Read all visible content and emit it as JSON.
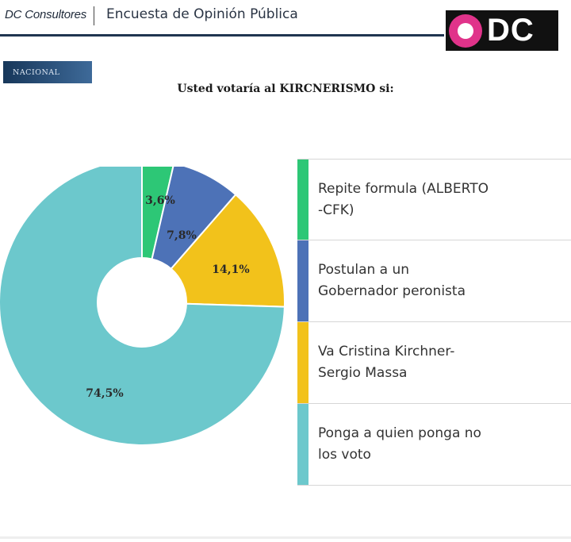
{
  "header": {
    "brand": "DC Consultores",
    "survey_title": "Encuesta de Opinión Pública",
    "logo_text": "DC"
  },
  "section_tag": "NACIONAL",
  "colors": {
    "green": "#2dc776",
    "blue": "#4d72b7",
    "yellow": "#f2c21b",
    "teal": "#6cc8cc"
  },
  "chart_data": {
    "type": "pie",
    "donut": true,
    "title": "Usted votaría al KIRCNERISMO si:",
    "categories": [
      "Repite formula (ALBERTO -CFK)",
      "Postulan a un Gobernador peronista",
      "Va Cristina Kirchner- Sergio Massa",
      "Ponga a quien ponga no los voto"
    ],
    "values": [
      3.6,
      7.8,
      14.1,
      74.5
    ],
    "value_labels": [
      "3,6%",
      "7,8%",
      "14,1%",
      "74,5%"
    ],
    "legend_placement": "right"
  },
  "legend": [
    {
      "line1": "Repite formula (ALBERTO",
      "line2": "-CFK)"
    },
    {
      "line1": "Postulan a un",
      "line2": "Gobernador peronista"
    },
    {
      "line1": "Va Cristina Kirchner-",
      "line2": "Sergio Massa"
    },
    {
      "line1": "Ponga a quien ponga no",
      "line2": "los voto"
    }
  ]
}
